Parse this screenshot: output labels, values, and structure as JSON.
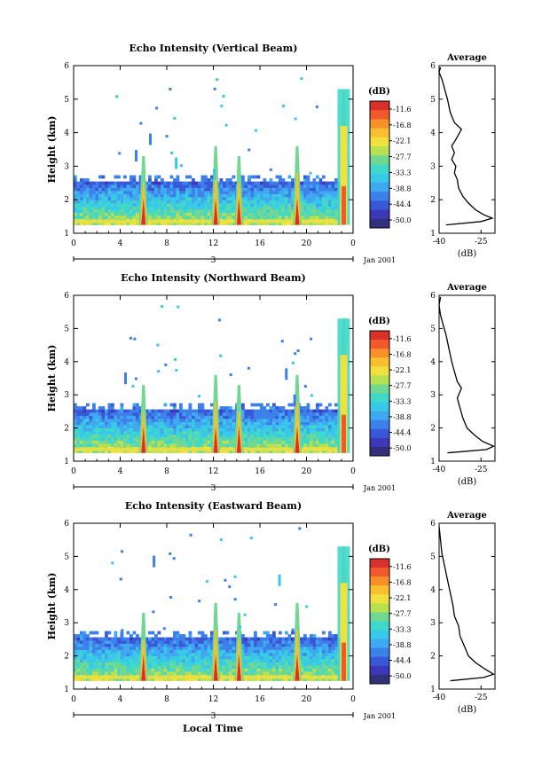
{
  "figure": {
    "time_axis_label": "Local Time",
    "date_label": "Jan 2001",
    "day_label": "3",
    "colorbar_unit": "(dB)",
    "average_title": "Average",
    "average_xlabel": "(dB)"
  },
  "chart_data": [
    {
      "type": "heatmap",
      "title": "Echo Intensity (Vertical Beam)",
      "xlabel": "",
      "ylabel": "Height (km)",
      "xticks": [
        "0",
        "4",
        "8",
        "12",
        "16",
        "20",
        "0"
      ],
      "yticks": [
        "1",
        "2",
        "3",
        "4",
        "5",
        "6"
      ],
      "xlim": [
        0,
        24
      ],
      "ylim": [
        1,
        6
      ],
      "colorbar": {
        "label": "(dB)",
        "ticks": [
          "-11.6",
          "-16.8",
          "-22.1",
          "-27.7",
          "-33.3",
          "-38.8",
          "-44.4",
          "-50.0"
        ],
        "colors": [
          "#d8302a",
          "#f05a2a",
          "#f8902a",
          "#f8c030",
          "#f0e040",
          "#b8e050",
          "#70d890",
          "#40d8c8",
          "#38c8e8",
          "#40a8f0",
          "#3c80ea",
          "#3858d8",
          "#3c38b8",
          "#32307a"
        ]
      },
      "spikes_hours": [
        6.0,
        12.2,
        14.2,
        19.2,
        23.2
      ],
      "layer_top_km": 2.5,
      "average_profile": {
        "xlabel": "(dB)",
        "xticks": [
          "-40",
          "-25"
        ],
        "xlim": [
          -40,
          -20
        ],
        "yticks": [
          "1",
          "2",
          "3",
          "4",
          "5",
          "6"
        ],
        "ylim": [
          1,
          6
        ],
        "points": [
          [
            -37.5,
            1.25
          ],
          [
            -25.0,
            1.35
          ],
          [
            -21.0,
            1.45
          ],
          [
            -24.0,
            1.55
          ],
          [
            -27.0,
            1.7
          ],
          [
            -29.5,
            1.9
          ],
          [
            -31.5,
            2.1
          ],
          [
            -33.0,
            2.35
          ],
          [
            -33.5,
            2.6
          ],
          [
            -34.5,
            2.8
          ],
          [
            -34.0,
            3.0
          ],
          [
            -35.5,
            3.2
          ],
          [
            -34.5,
            3.4
          ],
          [
            -35.5,
            3.6
          ],
          [
            -34.0,
            3.8
          ],
          [
            -32.0,
            4.1
          ],
          [
            -34.5,
            4.3
          ],
          [
            -36.0,
            4.6
          ],
          [
            -37.0,
            5.0
          ],
          [
            -38.0,
            5.3
          ],
          [
            -39.0,
            5.6
          ],
          [
            -40.0,
            5.8
          ],
          [
            -39.5,
            5.95
          ]
        ]
      }
    },
    {
      "type": "heatmap",
      "title": "Echo Intensity (Northward Beam)",
      "xlabel": "",
      "ylabel": "Height (km)",
      "xticks": [
        "0",
        "4",
        "8",
        "12",
        "16",
        "20",
        "0"
      ],
      "yticks": [
        "1",
        "2",
        "3",
        "4",
        "5",
        "6"
      ],
      "xlim": [
        0,
        24
      ],
      "ylim": [
        1,
        6
      ],
      "colorbar": {
        "label": "(dB)",
        "ticks": [
          "-11.6",
          "-16.8",
          "-22.1",
          "-27.7",
          "-33.3",
          "-38.8",
          "-44.4",
          "-50.0"
        ],
        "colors": [
          "#d8302a",
          "#f05a2a",
          "#f8902a",
          "#f8c030",
          "#f0e040",
          "#b8e050",
          "#70d890",
          "#40d8c8",
          "#38c8e8",
          "#40a8f0",
          "#3c80ea",
          "#3858d8",
          "#3c38b8",
          "#32307a"
        ]
      },
      "spikes_hours": [
        6.0,
        12.2,
        14.2,
        19.2,
        23.2
      ],
      "layer_top_km": 2.5,
      "average_profile": {
        "xlabel": "(dB)",
        "xticks": [
          "-40",
          "-25"
        ],
        "xlim": [
          -40,
          -20
        ],
        "yticks": [
          "1",
          "2",
          "3",
          "4",
          "5",
          "6"
        ],
        "ylim": [
          1,
          6
        ],
        "points": [
          [
            -37.0,
            1.25
          ],
          [
            -23.0,
            1.35
          ],
          [
            -20.5,
            1.45
          ],
          [
            -24.5,
            1.6
          ],
          [
            -27.5,
            1.8
          ],
          [
            -30.0,
            2.0
          ],
          [
            -31.5,
            2.3
          ],
          [
            -32.5,
            2.6
          ],
          [
            -33.5,
            2.9
          ],
          [
            -32.0,
            3.2
          ],
          [
            -33.5,
            3.4
          ],
          [
            -34.5,
            3.7
          ],
          [
            -35.5,
            4.0
          ],
          [
            -36.5,
            4.4
          ],
          [
            -37.5,
            4.8
          ],
          [
            -38.5,
            5.1
          ],
          [
            -39.5,
            5.4
          ],
          [
            -40.0,
            5.7
          ],
          [
            -39.5,
            5.95
          ]
        ]
      }
    },
    {
      "type": "heatmap",
      "title": "Echo Intensity (Eastward Beam)",
      "xlabel": "Local Time",
      "ylabel": "Height (km)",
      "xticks": [
        "0",
        "4",
        "8",
        "12",
        "16",
        "20",
        "0"
      ],
      "yticks": [
        "1",
        "2",
        "3",
        "4",
        "5",
        "6"
      ],
      "xlim": [
        0,
        24
      ],
      "ylim": [
        1,
        6
      ],
      "colorbar": {
        "label": "(dB)",
        "ticks": [
          "-11.6",
          "-16.8",
          "-22.1",
          "-27.7",
          "-33.3",
          "-38.8",
          "-44.4",
          "-50.0"
        ],
        "colors": [
          "#d8302a",
          "#f05a2a",
          "#f8902a",
          "#f8c030",
          "#f0e040",
          "#b8e050",
          "#70d890",
          "#40d8c8",
          "#38c8e8",
          "#40a8f0",
          "#3c80ea",
          "#3858d8",
          "#3c38b8",
          "#32307a"
        ]
      },
      "spikes_hours": [
        6.0,
        12.2,
        14.2,
        19.2,
        23.2
      ],
      "layer_top_km": 2.5,
      "average_profile": {
        "xlabel": "(dB)",
        "xticks": [
          "-40",
          "-25"
        ],
        "xlim": [
          -40,
          -20
        ],
        "yticks": [
          "1",
          "2",
          "3",
          "4",
          "5",
          "6"
        ],
        "ylim": [
          1,
          6
        ],
        "points": [
          [
            -36.0,
            1.25
          ],
          [
            -24.0,
            1.35
          ],
          [
            -20.5,
            1.45
          ],
          [
            -23.5,
            1.6
          ],
          [
            -27.0,
            1.8
          ],
          [
            -29.5,
            2.0
          ],
          [
            -31.0,
            2.3
          ],
          [
            -32.5,
            2.6
          ],
          [
            -33.0,
            2.9
          ],
          [
            -34.5,
            3.2
          ],
          [
            -35.0,
            3.5
          ],
          [
            -36.0,
            3.9
          ],
          [
            -37.0,
            4.3
          ],
          [
            -38.0,
            4.7
          ],
          [
            -39.0,
            5.1
          ],
          [
            -39.5,
            5.5
          ],
          [
            -40.0,
            5.9
          ]
        ]
      }
    }
  ]
}
